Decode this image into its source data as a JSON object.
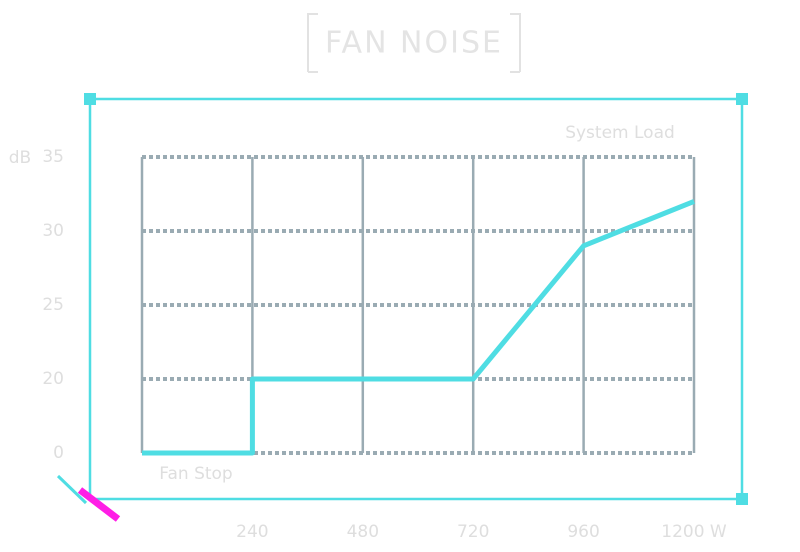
{
  "chart_data": {
    "type": "line",
    "title": "FAN NOISE",
    "x_label": "System Load",
    "y_label": "dB",
    "annotation": "Fan Stop",
    "x": [
      0,
      240,
      240,
      720,
      960,
      1200
    ],
    "series": [
      {
        "name": "Fan noise",
        "color": "#4fdde3",
        "values": [
          0,
          0,
          20,
          20,
          29,
          32
        ]
      }
    ],
    "xlim": [
      0,
      1200
    ],
    "xticks": [
      240,
      480,
      720,
      960,
      {
        "value": 1200,
        "label": "1200 W"
      }
    ],
    "ylim": [
      0,
      35
    ],
    "yticks": [
      0,
      20,
      25,
      30,
      35
    ],
    "grid": true
  }
}
